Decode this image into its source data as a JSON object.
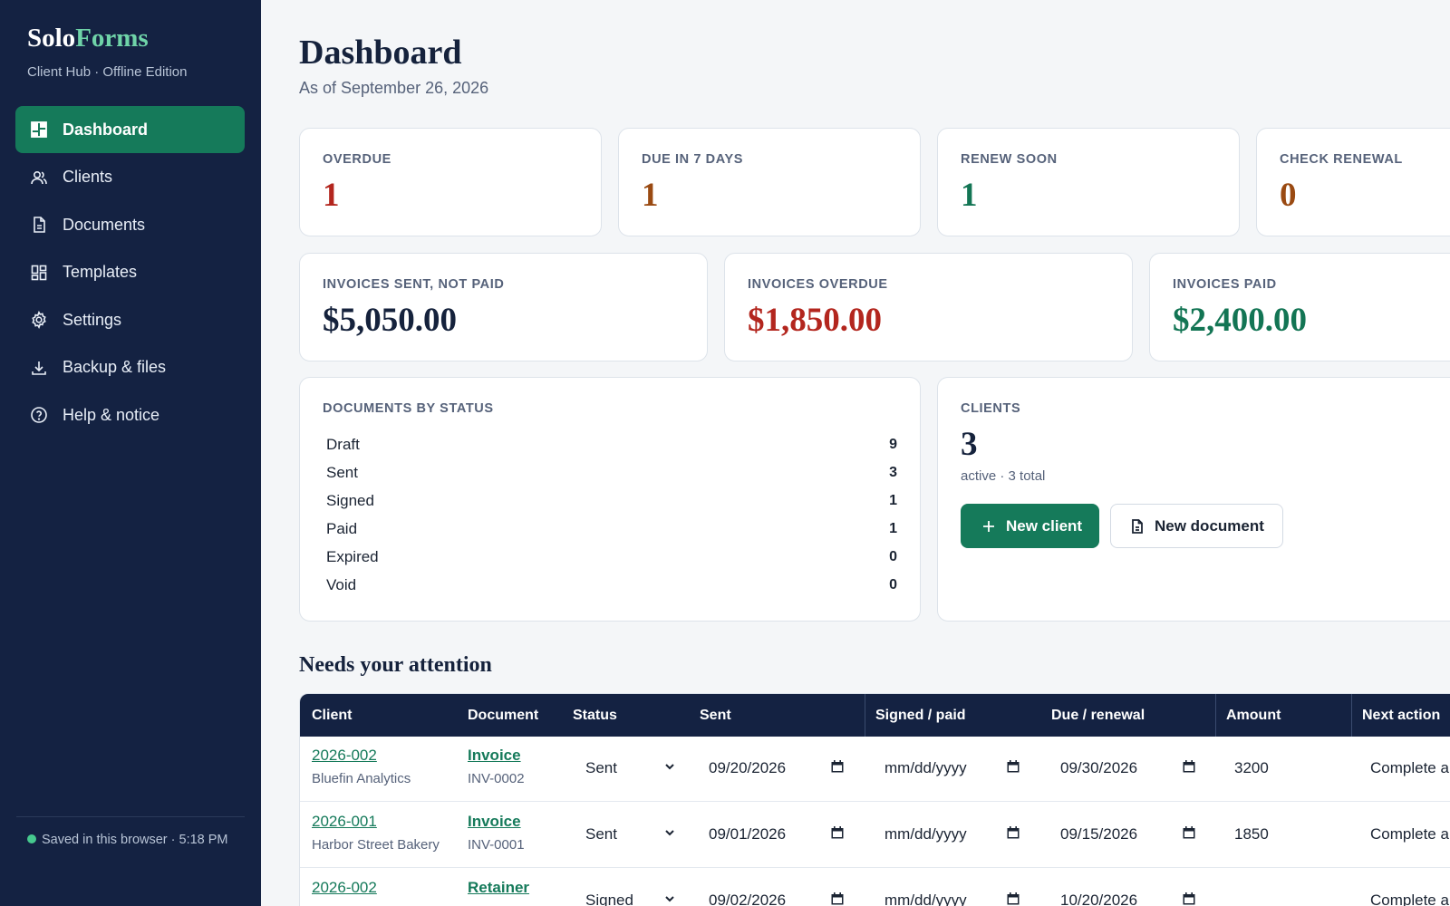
{
  "brand": {
    "name_part1": "Solo",
    "name_part2": "Forms",
    "subtitle": "Client Hub · Offline Edition"
  },
  "nav": {
    "items": [
      {
        "label": "Dashboard",
        "icon": "dashboard-icon",
        "active": true
      },
      {
        "label": "Clients",
        "icon": "users-icon"
      },
      {
        "label": "Documents",
        "icon": "document-icon"
      },
      {
        "label": "Templates",
        "icon": "templates-icon"
      },
      {
        "label": "Settings",
        "icon": "gear-icon"
      },
      {
        "label": "Backup & files",
        "icon": "download-icon"
      },
      {
        "label": "Help & notice",
        "icon": "help-icon"
      }
    ]
  },
  "saved_status": "Saved in this browser · 5:18 PM",
  "page": {
    "title": "Dashboard",
    "subtitle": "As of September 26, 2026"
  },
  "stats": [
    {
      "label": "OVERDUE",
      "value": "1",
      "color": "#b3261e"
    },
    {
      "label": "DUE IN 7 DAYS",
      "value": "1",
      "color": "#9a4a12"
    },
    {
      "label": "RENEW SOON",
      "value": "1",
      "color": "#137554"
    },
    {
      "label": "CHECK RENEWAL",
      "value": "0",
      "color": "#9a4a12"
    }
  ],
  "invoices": [
    {
      "label": "INVOICES SENT, NOT PAID",
      "value": "$5,050.00",
      "color": "#15223c"
    },
    {
      "label": "INVOICES OVERDUE",
      "value": "$1,850.00",
      "color": "#b3261e"
    },
    {
      "label": "INVOICES PAID",
      "value": "$2,400.00",
      "color": "#137554"
    }
  ],
  "docs_by_status": {
    "label": "DOCUMENTS BY STATUS",
    "rows": [
      {
        "status": "Draft",
        "count": "9"
      },
      {
        "status": "Sent",
        "count": "3"
      },
      {
        "status": "Signed",
        "count": "1"
      },
      {
        "status": "Paid",
        "count": "1"
      },
      {
        "status": "Expired",
        "count": "0"
      },
      {
        "status": "Void",
        "count": "0"
      }
    ]
  },
  "clients_card": {
    "label": "CLIENTS",
    "count": "3",
    "sub": "active · 3 total",
    "new_client_label": "New client",
    "new_document_label": "New document"
  },
  "attention": {
    "title": "Needs your attention",
    "columns": [
      "Client",
      "Document",
      "Status",
      "Sent",
      "Signed / paid",
      "Due / renewal",
      "Amount",
      "Next action"
    ],
    "rows": [
      {
        "client_id": "2026-002",
        "client_name": "Bluefin Analytics",
        "doc_type": "Invoice",
        "doc_num": "INV-0002",
        "status": "Sent",
        "sent": "09/20/2026",
        "signed": "mm/dd/yyyy",
        "due": "09/30/2026",
        "amount": "3200",
        "next_action": "Complete a"
      },
      {
        "client_id": "2026-001",
        "client_name": "Harbor Street Bakery",
        "doc_type": "Invoice",
        "doc_num": "INV-0001",
        "status": "Sent",
        "sent": "09/01/2026",
        "signed": "mm/dd/yyyy",
        "due": "09/15/2026",
        "amount": "1850",
        "next_action": "Complete a"
      },
      {
        "client_id": "2026-002",
        "client_name": "",
        "doc_type": "Retainer",
        "doc_num": "",
        "status": "Signed",
        "sent": "09/02/2026",
        "signed": "mm/dd/yyyy",
        "due": "10/20/2026",
        "amount": "",
        "next_action": "Complete a"
      }
    ]
  },
  "colors": {
    "sidebar": "#142242",
    "accent": "#157a5a",
    "danger": "#b3261e",
    "warning": "#9a4a12"
  }
}
